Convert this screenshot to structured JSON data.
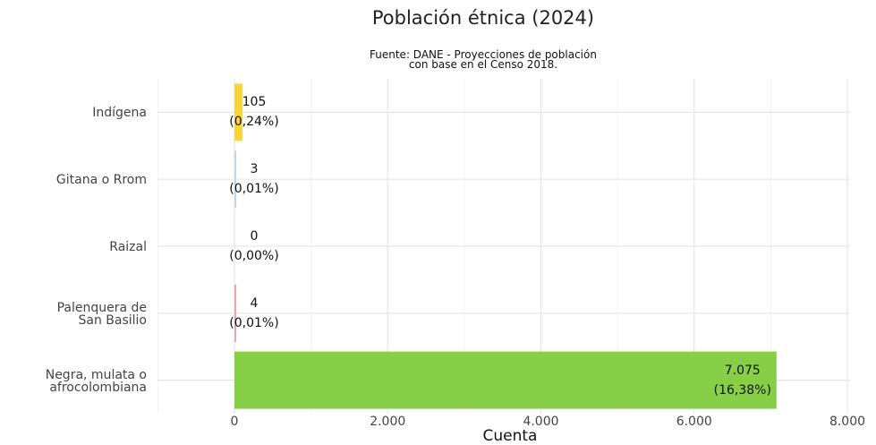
{
  "chart_data": {
    "type": "bar",
    "orientation": "horizontal",
    "title": "Población étnica (2024)",
    "subtitle": "Fuente: DANE - Proyecciones de población\ncon base en el Censo 2018.",
    "xlabel": "Cuenta",
    "ylabel": "",
    "xlim": [
      -1000,
      8000
    ],
    "xticks": [
      0,
      2000,
      4000,
      6000,
      8000
    ],
    "xtick_labels": [
      "0",
      "2.000",
      "4.000",
      "6.000",
      "8.000"
    ],
    "grid": true,
    "categories": [
      "Indígena",
      "Gitana o Rrom",
      "Raizal",
      "Palenquera de\nSan Basilio",
      "Negra, mulata o\nafrocolombiana"
    ],
    "values": [
      105,
      3,
      0,
      4,
      7075
    ],
    "percent_labels": [
      "(0,24%)",
      "(0,01%)",
      "(0,00%)",
      "(0,01%)",
      "(16,38%)"
    ],
    "value_labels": [
      "105",
      "3",
      "0",
      "4",
      "7.075"
    ],
    "colors": [
      "#f7d63a",
      "#bcd8f0",
      "#f4a3a8",
      "#f4a3a8",
      "#88cf48"
    ]
  }
}
